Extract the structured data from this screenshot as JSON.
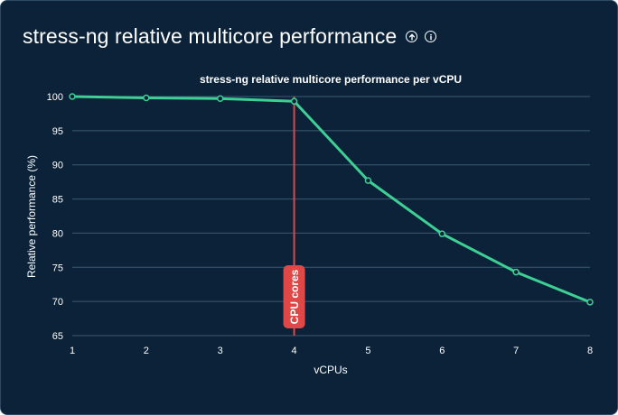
{
  "panel": {
    "title": "stress-ng relative multicore performance",
    "icons": [
      "arrow-up-circle-icon",
      "info-circle-icon"
    ]
  },
  "colors": {
    "background": "#0b2239",
    "line": "#3ecf95",
    "annotation": "#e04848",
    "grid": "#3c5a72"
  },
  "chart_data": {
    "type": "line",
    "title": "stress-ng relative multicore performance per vCPU",
    "xlabel": "vCPUs",
    "ylabel": "Relative performance (%)",
    "x": [
      1,
      2,
      3,
      4,
      5,
      6,
      7,
      8
    ],
    "xticks": [
      "1",
      "2",
      "3",
      "4",
      "5",
      "6",
      "7",
      "8"
    ],
    "yticks": [
      "65",
      "70",
      "75",
      "80",
      "85",
      "90",
      "95",
      "100"
    ],
    "ylim": [
      65,
      100
    ],
    "xlim": [
      1,
      8
    ],
    "grid": true,
    "series": [
      {
        "values": [
          100,
          99.8,
          99.7,
          99.3,
          87.7,
          79.9,
          74.3,
          69.9
        ]
      }
    ],
    "annotation": {
      "x": 4,
      "label": "CPU cores"
    }
  }
}
